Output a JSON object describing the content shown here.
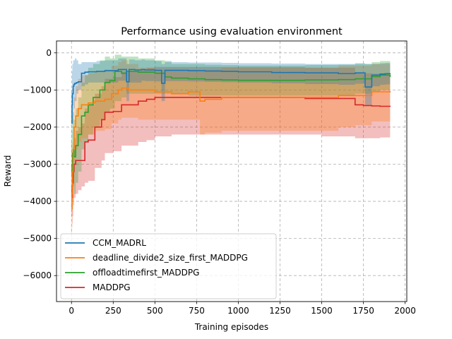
{
  "chart_data": {
    "type": "line",
    "title": "Performance using evaluation environment",
    "xlabel": "Training episodes",
    "ylabel": "Reward",
    "xlim": [
      -90,
      2010
    ],
    "ylim": [
      -6700,
      320
    ],
    "xticks": [
      0,
      250,
      500,
      750,
      1000,
      1250,
      1500,
      1750,
      2000
    ],
    "yticks": [
      0,
      -1000,
      -2000,
      -3000,
      -4000,
      -5000,
      -6000
    ],
    "xtick_labels": [
      "0",
      "250",
      "500",
      "750",
      "1000",
      "1250",
      "1500",
      "1750",
      "2000"
    ],
    "ytick_labels": [
      "0",
      "−1000",
      "−2000",
      "−3000",
      "−4000",
      "−5000",
      "−6000"
    ],
    "grid": true,
    "legend_position": "lower-left",
    "series": [
      {
        "name": "CCM_MADRL",
        "color": "#1f77b4",
        "x": [
          0,
          3,
          5,
          10,
          14,
          20,
          30,
          40,
          60,
          80,
          100,
          150,
          200,
          280,
          330,
          345,
          380,
          420,
          440,
          500,
          540,
          560,
          600,
          700,
          800,
          900,
          1000,
          1200,
          1400,
          1600,
          1700,
          1760,
          1800,
          1850,
          1880,
          1910
        ],
        "y": [
          -1900,
          -1400,
          -1100,
          -900,
          -850,
          -820,
          -800,
          -780,
          -550,
          -520,
          -510,
          -500,
          -480,
          -450,
          -780,
          -450,
          -460,
          -450,
          -460,
          -470,
          -820,
          -470,
          -470,
          -480,
          -490,
          -500,
          -510,
          -530,
          -540,
          -560,
          -540,
          -920,
          -600,
          -570,
          -560,
          -550
        ],
        "upper": [
          -1000,
          -500,
          -300,
          -200,
          -200,
          -150,
          -200,
          -300,
          -250,
          -250,
          -250,
          -220,
          -200,
          -150,
          -300,
          -180,
          -200,
          -180,
          -200,
          -220,
          -300,
          -220,
          -250,
          -260,
          -260,
          -270,
          -280,
          -290,
          -300,
          -300,
          -280,
          -300,
          -300,
          -280,
          -270,
          -260
        ],
        "lower": [
          -2800,
          -2300,
          -1900,
          -1700,
          -1500,
          -1300,
          -1100,
          -1000,
          -900,
          -850,
          -800,
          -800,
          -800,
          -750,
          -1300,
          -800,
          -800,
          -750,
          -760,
          -770,
          -1300,
          -760,
          -760,
          -770,
          -780,
          -790,
          -800,
          -820,
          -840,
          -860,
          -830,
          -1400,
          -900,
          -860,
          -850,
          -840
        ]
      },
      {
        "name": "deadline_divide2_size_first_MADDPG",
        "color": "#ff7f0e",
        "x": [
          0,
          3,
          5,
          10,
          15,
          25,
          40,
          60,
          100,
          140,
          200,
          240,
          280,
          300,
          340,
          400,
          500,
          600,
          700,
          770,
          800,
          900,
          1000,
          1200,
          1400,
          1500,
          1600,
          1700,
          1800,
          1910
        ],
        "y": [
          -4200,
          -3800,
          -3200,
          -2600,
          -2000,
          -1700,
          -1500,
          -1400,
          -1350,
          -1300,
          -1250,
          -1100,
          -1000,
          -950,
          -1000,
          -1000,
          -1050,
          -1100,
          -1050,
          -1300,
          -1250,
          -1200,
          -1200,
          -1200,
          -1200,
          -1200,
          -1150,
          -1150,
          -1050,
          -1030
        ],
        "upper": [
          -3300,
          -2900,
          -2400,
          -1800,
          -1200,
          -900,
          -700,
          -600,
          -550,
          -500,
          -450,
          -350,
          -250,
          -200,
          -300,
          -400,
          -450,
          -500,
          -450,
          -500,
          -450,
          -400,
          -400,
          -400,
          -400,
          -400,
          -350,
          -350,
          -300,
          -300
        ],
        "lower": [
          -5100,
          -4700,
          -4000,
          -3400,
          -2900,
          -2600,
          -2400,
          -2300,
          -2200,
          -2100,
          -2050,
          -1900,
          -1800,
          -1750,
          -1750,
          -1800,
          -1800,
          -1800,
          -1800,
          -2200,
          -2150,
          -2100,
          -2100,
          -2100,
          -2100,
          -2100,
          -2000,
          -1950,
          -1850,
          -1800
        ]
      },
      {
        "name": "offloadtimefirst_MADDPG",
        "color": "#2ca02c",
        "x": [
          0,
          3,
          6,
          10,
          15,
          25,
          40,
          60,
          80,
          100,
          130,
          170,
          200,
          230,
          260,
          300,
          330,
          400,
          500,
          560,
          600,
          700,
          800,
          900,
          1000,
          1200,
          1400,
          1600,
          1700,
          1800,
          1850,
          1910
        ],
        "y": [
          -3300,
          -3000,
          -2700,
          -2600,
          -2800,
          -2500,
          -2200,
          -1700,
          -1600,
          -1400,
          -1200,
          -1000,
          -800,
          -750,
          -500,
          -550,
          -500,
          -520,
          -550,
          -650,
          -680,
          -700,
          -720,
          -730,
          -740,
          -740,
          -730,
          -720,
          -700,
          -640,
          -600,
          -650
        ],
        "upper": [
          -2400,
          -2100,
          -1700,
          -1600,
          -1800,
          -1500,
          -1200,
          -800,
          -600,
          -400,
          -300,
          -200,
          -100,
          -150,
          -50,
          -100,
          -100,
          -150,
          -200,
          -250,
          -300,
          -300,
          -320,
          -330,
          -340,
          -340,
          -330,
          -320,
          -300,
          -250,
          -220,
          -250
        ],
        "lower": [
          -4200,
          -3900,
          -3700,
          -3600,
          -3800,
          -3500,
          -3200,
          -2600,
          -2400,
          -2200,
          -2000,
          -1800,
          -1600,
          -1500,
          -1300,
          -1200,
          -1100,
          -1100,
          -1100,
          -1100,
          -1100,
          -1150,
          -1150,
          -1150,
          -1150,
          -1150,
          -1150,
          -1150,
          -1100,
          -1050,
          -1000,
          -1050
        ],
        "upper_extra": []
      },
      {
        "name": "MADDPG",
        "color": "#d62728",
        "x": [
          0,
          3,
          6,
          10,
          15,
          25,
          40,
          60,
          80,
          100,
          140,
          180,
          200,
          250,
          300,
          400,
          450,
          500,
          600,
          700,
          800,
          900,
          1000,
          1200,
          1400,
          1500,
          1600,
          1700,
          1750,
          1800,
          1850,
          1910
        ],
        "y": [
          -3600,
          -3900,
          -3500,
          -3200,
          -3000,
          -2900,
          -2900,
          -2900,
          -2400,
          -2350,
          -2000,
          -1800,
          -1600,
          -1580,
          -1400,
          -1300,
          -1250,
          -1200,
          -1200,
          -1200,
          -1200,
          -1200,
          -1200,
          -1200,
          -1230,
          -1230,
          -1230,
          -1400,
          -1420,
          -1430,
          -1440,
          -1450
        ],
        "upper": [
          -3000,
          -3200,
          -2800,
          -2500,
          -2300,
          -2100,
          -2000,
          -1900,
          -1500,
          -1400,
          -1100,
          -900,
          -700,
          -650,
          -500,
          -450,
          -400,
          -380,
          -380,
          -380,
          -380,
          -380,
          -380,
          -380,
          -400,
          -400,
          -400,
          -550,
          -550,
          -560,
          -570,
          -580
        ],
        "lower": [
          -4400,
          -4600,
          -4400,
          -4100,
          -3900,
          -3800,
          -3700,
          -3600,
          -3500,
          -3450,
          -3100,
          -2900,
          -2700,
          -2650,
          -2500,
          -2400,
          -2350,
          -2250,
          -2200,
          -2200,
          -2200,
          -2200,
          -2200,
          -2200,
          -2200,
          -2250,
          -2250,
          -2300,
          -2300,
          -2300,
          -2280,
          -2280
        ]
      }
    ]
  }
}
